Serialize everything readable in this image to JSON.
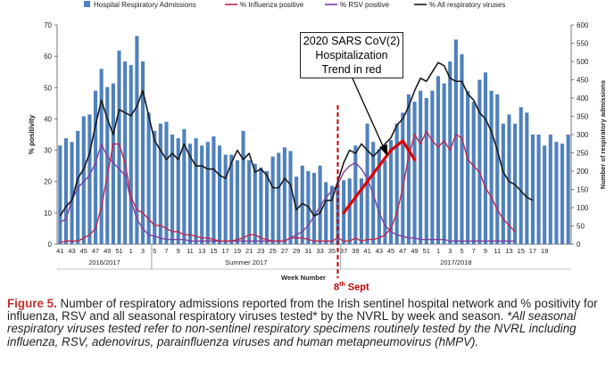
{
  "chart_data": {
    "type": "bar+line",
    "legend": [
      {
        "name": "Hospital Respiratory Admissions",
        "kind": "bar",
        "color": "#4f81bd"
      },
      {
        "name": "% Influenza positive",
        "kind": "line",
        "color": "#c0264b"
      },
      {
        "name": "% RSV positive",
        "kind": "line",
        "color": "#7d3fa0"
      },
      {
        "name": "% All respiratory viruses",
        "kind": "line",
        "color": "#1a1a1a"
      }
    ],
    "legend_position": "top",
    "ylabel_left": "% positivity",
    "ylabel_right": "Number of respiratory admissions",
    "xlabel": "Week Number",
    "ylim_left": [
      0,
      70
    ],
    "yticks_left": [
      0,
      10,
      20,
      30,
      40,
      50,
      60,
      70
    ],
    "ylim_right": [
      0,
      600
    ],
    "yticks_right": [
      0,
      50,
      100,
      150,
      200,
      250,
      300,
      350,
      400,
      450,
      500,
      550,
      600
    ],
    "week_labels": [
      "41",
      "43",
      "45",
      "47",
      "49",
      "51",
      "1",
      "3",
      "5",
      "7",
      "9",
      "11",
      "13",
      "15",
      "17",
      "19",
      "21",
      "23",
      "25",
      "27",
      "29",
      "31",
      "33",
      "35",
      "37",
      "39",
      "41",
      "43",
      "45",
      "47",
      "49",
      "51",
      "1",
      "3",
      "5",
      "7",
      "9",
      "11",
      "13",
      "15",
      "17",
      "19"
    ],
    "season_labels": [
      "2016/2017",
      "Summer 2017",
      "2017/2018"
    ],
    "admissions": [
      270,
      290,
      280,
      310,
      350,
      355,
      420,
      480,
      430,
      440,
      530,
      500,
      490,
      570,
      500,
      360,
      310,
      330,
      335,
      300,
      290,
      315,
      275,
      290,
      270,
      280,
      295,
      270,
      245,
      245,
      230,
      310,
      230,
      220,
      210,
      200,
      240,
      250,
      265,
      255,
      185,
      215,
      200,
      195,
      215,
      170,
      160,
      165,
      175,
      180,
      270,
      180,
      330,
      280,
      260,
      230,
      285,
      330,
      360,
      410,
      390,
      420,
      400,
      420,
      460,
      440,
      500,
      560,
      520,
      420,
      390,
      450,
      470,
      420,
      410,
      330,
      355,
      330,
      375,
      360,
      300,
      300,
      270,
      300,
      280,
      275,
      300
    ],
    "flu_pct": [
      0.5,
      1,
      1,
      1,
      2,
      3,
      5,
      12,
      22,
      32,
      32,
      26,
      15,
      11,
      10,
      8,
      6,
      6,
      5,
      4,
      4,
      3,
      3,
      2.5,
      2,
      2,
      1.5,
      1,
      1,
      1,
      1.5,
      2,
      3,
      3,
      2,
      1.5,
      1,
      1,
      1,
      2,
      2,
      2,
      1.5,
      1,
      1,
      1,
      1,
      2,
      1,
      1,
      2,
      1,
      1.5,
      1.5,
      2,
      3,
      5,
      10,
      18,
      28,
      35,
      32,
      36,
      33,
      31,
      33,
      30,
      35,
      34,
      27,
      25,
      23,
      18,
      15,
      11,
      8,
      6,
      4
    ],
    "rsv_pct": [
      7,
      8,
      14,
      18,
      20,
      22,
      26,
      32,
      28,
      26,
      24,
      22,
      14,
      8,
      5,
      3,
      2.5,
      2,
      1.5,
      1.5,
      1.5,
      1.5,
      1,
      1,
      1,
      1,
      1,
      1,
      1,
      1,
      1,
      1,
      1,
      1,
      1,
      1,
      1,
      1,
      1,
      2,
      3,
      4,
      6,
      9,
      12,
      15,
      17,
      19,
      23,
      25,
      26,
      24,
      21,
      16,
      10,
      6,
      4,
      3,
      2.5,
      2,
      2,
      1.5,
      1.5,
      1.5,
      1.5,
      1.5,
      1,
      1,
      1,
      1,
      1,
      1,
      1,
      1,
      1,
      1,
      1,
      1
    ],
    "all_pct": [
      9,
      12,
      14,
      21,
      24,
      29,
      38,
      46,
      40,
      35,
      43,
      42,
      41,
      44,
      49,
      41,
      33,
      30,
      27,
      29,
      27,
      32,
      28,
      25,
      25,
      24,
      24,
      22,
      21,
      26,
      30,
      27,
      29,
      23,
      24,
      22,
      18,
      18,
      21,
      19,
      11,
      13,
      12,
      9,
      10,
      14,
      14,
      20,
      26,
      30,
      29,
      32,
      30,
      28,
      30,
      32,
      34,
      38,
      40,
      44,
      49,
      53,
      52,
      55,
      58,
      57,
      53,
      52,
      52,
      48,
      46,
      42,
      40,
      36,
      30,
      23,
      20,
      19,
      17,
      15,
      14
    ],
    "sars_cov2_trend": [
      {
        "week_index": 48,
        "pct": 10
      },
      {
        "week_index": 52,
        "pct": 20
      },
      {
        "week_index": 56,
        "pct": 30
      },
      {
        "week_index": 58,
        "pct": 33
      },
      {
        "week_index": 60,
        "pct": 27
      }
    ],
    "annotations": {
      "sars_label": [
        "2020 SARS CoV(2)",
        "Hospitalization",
        "Trend in red"
      ],
      "sept_label": "8",
      "sept_suffix": "th",
      "sept_word": " Sept"
    }
  },
  "caption": {
    "figure_label": "Figure 5.",
    "text_main": " Number of respiratory admissions reported from the Irish sentinel hospital network and % positivity for influenza, RSV and all seasonal respiratory viruses tested* by the NVRL by week and season. ",
    "text_italic": "*All seasonal respiratory viruses tested refer to non-sentinel respiratory specimens routinely tested by the NVRL including influenza, RSV, adenovirus, parainfluenza viruses and human metapneumovirus (hMPV)."
  },
  "colors": {
    "bar": "#4f81bd",
    "influenza": "#c0264b",
    "rsv": "#7d3fa0",
    "all_viruses": "#1a1a1a",
    "sars_trend": "#e00000",
    "sept_line": "#c00000",
    "caption_label": "#c0302c"
  }
}
